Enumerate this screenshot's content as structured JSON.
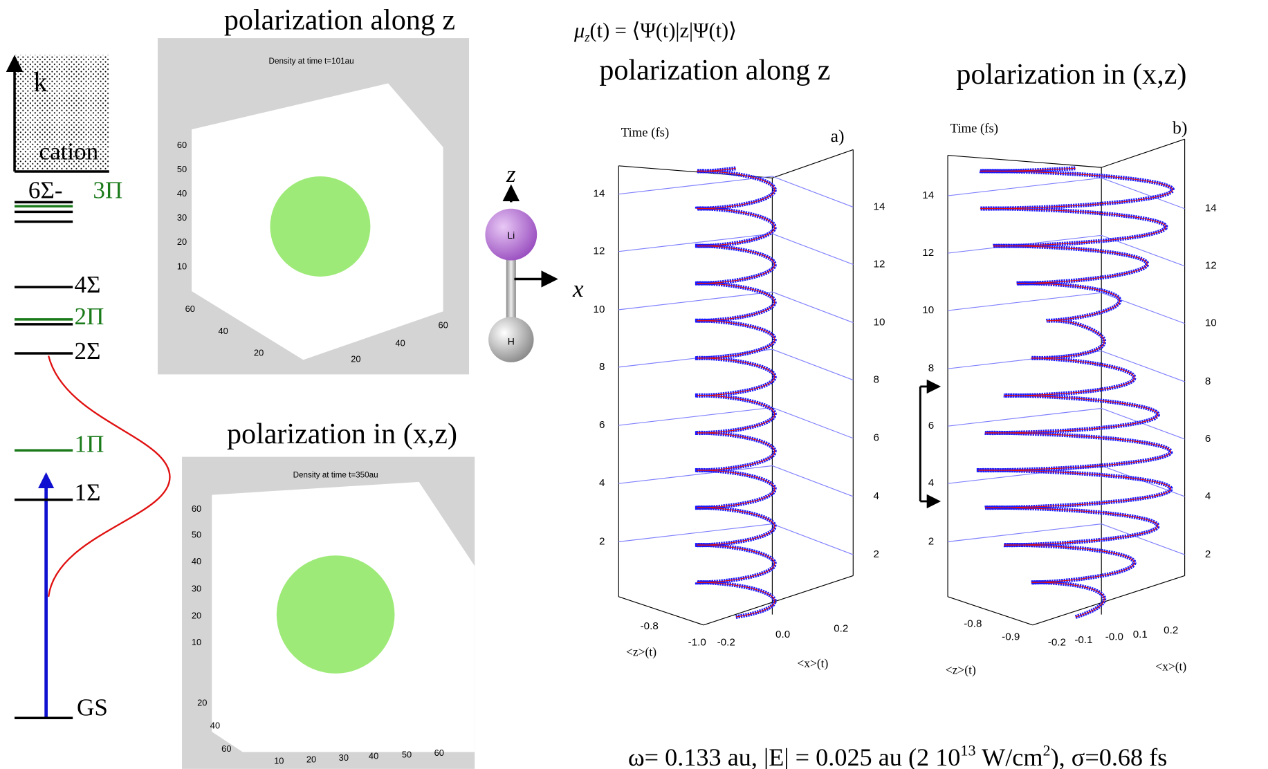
{
  "energy_levels": {
    "axis_label": "k",
    "continuum_label": "cation",
    "levels": [
      {
        "label": "6Σ-",
        "color": "#000000"
      },
      {
        "label": "3Π",
        "color": "#1a7a1a"
      },
      {
        "label": "4Σ",
        "color": "#000000"
      },
      {
        "label": "2Π",
        "color": "#1a7a1a"
      },
      {
        "label": "2Σ",
        "color": "#000000"
      },
      {
        "label": "1Π",
        "color": "#1a7a1a"
      },
      {
        "label": "1Σ",
        "color": "#000000"
      },
      {
        "label": "GS",
        "color": "#000000"
      }
    ]
  },
  "density_plots": [
    {
      "title": "polarization along z",
      "plot_title": "Density at time t=101au",
      "y_ticks": [
        "10",
        "20",
        "30",
        "40",
        "50",
        "60"
      ],
      "x_ticks": [
        "60",
        "40",
        "20"
      ],
      "z_ticks": [
        "60",
        "40",
        "20"
      ]
    },
    {
      "title": "polarization in (x,z)",
      "plot_title": "Density at time t=350au",
      "y_ticks": [
        "60",
        "50",
        "40",
        "30",
        "20",
        "10"
      ],
      "x_ticks": [
        "20",
        "40",
        "60"
      ],
      "z_ticks": [
        "10",
        "20",
        "30",
        "40",
        "50",
        "60"
      ]
    }
  ],
  "molecule": {
    "axis_z": "z",
    "axis_x": "x",
    "atoms": [
      "Li",
      "H"
    ]
  },
  "formula": {
    "symbol": "μ",
    "subscript": "z",
    "rest": "(t) = ⟨Ψ(t)|z|Ψ(t)⟩"
  },
  "helix_plots": [
    {
      "title": "polarization along z",
      "panel": "a)",
      "axis_title": "Time (fs)",
      "left_ticks": [
        "14",
        "12",
        "10",
        "8",
        "6",
        "4",
        "2"
      ],
      "right_ticks": [
        "14",
        "12",
        "10",
        "8",
        "6",
        "4",
        "2"
      ],
      "z_ticks": [
        "-0.8",
        "-1.0"
      ],
      "x_ticks": [
        "-0.2",
        "0.0",
        "0.2"
      ],
      "z_label": "<z>(t)",
      "x_label": "<x>(t)"
    },
    {
      "title": "polarization in (x,z)",
      "panel": "b)",
      "axis_title": "Time (fs)",
      "left_ticks": [
        "14",
        "12",
        "10",
        "8",
        "6",
        "4",
        "2"
      ],
      "right_ticks": [
        "14",
        "12",
        "10",
        "8",
        "6",
        "4",
        "2"
      ],
      "z_ticks": [
        "-0.8",
        "-0.9"
      ],
      "x_ticks": [
        "-0.2",
        "-0.1",
        "-0.0",
        "0.1",
        "0.2"
      ],
      "z_label": "<z>(t)",
      "x_label": "<x>(t)"
    }
  ],
  "caption": {
    "main": "ω= 0.133 au, |E| = 0.025 au (2 10",
    "exp1": "13",
    "mid": " W/cm",
    "exp2": "2",
    "end": "), σ=0.68 fs"
  }
}
